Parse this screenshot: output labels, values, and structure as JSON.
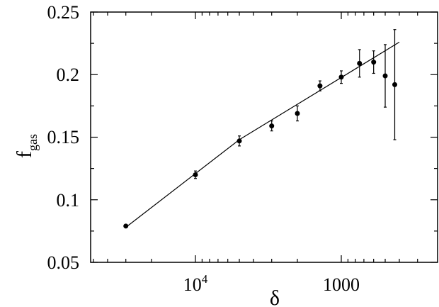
{
  "chart_data": {
    "type": "scatter",
    "title": "",
    "xlabel": "δ",
    "ylabel": {
      "main": "f",
      "sub": "gas"
    },
    "x_axis": {
      "scale": "log",
      "reversed": true,
      "range": [
        40000,
        400
      ],
      "tick_labels": [
        {
          "value": 10000,
          "base": "10",
          "exp": "4"
        },
        {
          "value": 1000,
          "text": "1000"
        }
      ]
    },
    "y_axis": {
      "range": [
        0.05,
        0.25
      ],
      "tick_labels": [
        "0.05",
        "0.1",
        "0.15",
        "0.2",
        "0.25"
      ],
      "tick_values": [
        0.05,
        0.1,
        0.15,
        0.2,
        0.25
      ]
    },
    "grid": false,
    "legend": "none",
    "series": [
      {
        "values": [
          {
            "x": 30000,
            "y": 0.079,
            "err": 0.0
          },
          {
            "x": 10000,
            "y": 0.12,
            "err": 0.003
          },
          {
            "x": 5000,
            "y": 0.147,
            "err": 0.004
          },
          {
            "x": 3000,
            "y": 0.159,
            "err": 0.004
          },
          {
            "x": 2000,
            "y": 0.169,
            "err": 0.006
          },
          {
            "x": 1400,
            "y": 0.191,
            "err": 0.004
          },
          {
            "x": 1000,
            "y": 0.198,
            "err": 0.005
          },
          {
            "x": 750,
            "y": 0.209,
            "err": 0.011
          },
          {
            "x": 600,
            "y": 0.21,
            "err": 0.009
          },
          {
            "x": 500,
            "y": 0.199,
            "err": 0.025
          },
          {
            "x": 430,
            "y": 0.192,
            "err": 0.044
          }
        ]
      }
    ],
    "fit_line": {
      "values": [
        {
          "x": 30000,
          "y": 0.078
        },
        {
          "x": 5000,
          "y": 0.148
        },
        {
          "x": 400,
          "y": 0.226
        }
      ]
    },
    "colors": {
      "axes": "#000000",
      "points": "#000000",
      "line": "#000000"
    }
  }
}
